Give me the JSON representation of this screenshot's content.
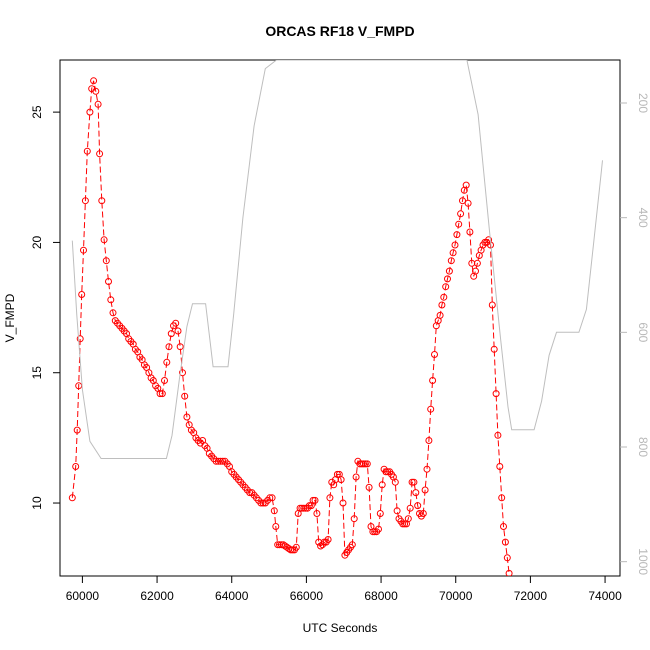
{
  "chart_data": {
    "type": "scatter",
    "title": "ORCAS RF18 V_FMPD",
    "xlabel": "UTC Seconds",
    "ylabel": "V_FMPD",
    "xlim": [
      59400,
      74400
    ],
    "ylim": [
      7.2,
      27.0
    ],
    "x_ticks": [
      {
        "value": 60000,
        "label": "60000"
      },
      {
        "value": 62000,
        "label": "62000"
      },
      {
        "value": 64000,
        "label": "64000"
      },
      {
        "value": 66000,
        "label": "66000"
      },
      {
        "value": 68000,
        "label": "68000"
      },
      {
        "value": 70000,
        "label": "70000"
      },
      {
        "value": 72000,
        "label": "72000"
      },
      {
        "value": 74000,
        "label": "74000"
      }
    ],
    "y_ticks": [
      {
        "value": 10,
        "label": "10"
      },
      {
        "value": 15,
        "label": "15"
      },
      {
        "value": 20,
        "label": "20"
      },
      {
        "value": 25,
        "label": "25"
      }
    ],
    "y2_lim": [
      1025,
      125
    ],
    "y2_ticks": [
      {
        "value": 200,
        "label": "200"
      },
      {
        "value": 400,
        "label": "400"
      },
      {
        "value": 600,
        "label": "600"
      },
      {
        "value": 800,
        "label": "800"
      },
      {
        "value": 1000,
        "label": "1000"
      }
    ],
    "series": [
      {
        "role": "primary",
        "color": "#ff0000",
        "marker": "open-circle",
        "points": [
          [
            59730,
            10.2
          ],
          [
            59820,
            11.4
          ],
          [
            59860,
            12.8
          ],
          [
            59900,
            14.5
          ],
          [
            59940,
            16.3
          ],
          [
            59980,
            18.0
          ],
          [
            60030,
            19.7
          ],
          [
            60080,
            21.6
          ],
          [
            60130,
            23.5
          ],
          [
            60200,
            25.0
          ],
          [
            60250,
            25.9
          ],
          [
            60300,
            26.2
          ],
          [
            60360,
            25.8
          ],
          [
            60420,
            25.3
          ],
          [
            60460,
            23.4
          ],
          [
            60520,
            21.6
          ],
          [
            60580,
            20.1
          ],
          [
            60640,
            19.3
          ],
          [
            60700,
            18.5
          ],
          [
            60760,
            17.8
          ],
          [
            60820,
            17.3
          ],
          [
            60880,
            17.0
          ],
          [
            60940,
            16.9
          ],
          [
            61000,
            16.8
          ],
          [
            61060,
            16.7
          ],
          [
            61120,
            16.6
          ],
          [
            61180,
            16.5
          ],
          [
            61240,
            16.3
          ],
          [
            61300,
            16.2
          ],
          [
            61360,
            16.1
          ],
          [
            61420,
            15.9
          ],
          [
            61480,
            15.8
          ],
          [
            61540,
            15.6
          ],
          [
            61600,
            15.5
          ],
          [
            61660,
            15.3
          ],
          [
            61720,
            15.2
          ],
          [
            61780,
            15.0
          ],
          [
            61840,
            14.8
          ],
          [
            61900,
            14.7
          ],
          [
            61960,
            14.5
          ],
          [
            62020,
            14.4
          ],
          [
            62080,
            14.2
          ],
          [
            62140,
            14.2
          ],
          [
            62200,
            14.7
          ],
          [
            62260,
            15.4
          ],
          [
            62320,
            16.0
          ],
          [
            62380,
            16.5
          ],
          [
            62440,
            16.8
          ],
          [
            62500,
            16.9
          ],
          [
            62560,
            16.6
          ],
          [
            62620,
            16.0
          ],
          [
            62680,
            15.0
          ],
          [
            62740,
            14.1
          ],
          [
            62800,
            13.3
          ],
          [
            62860,
            13.0
          ],
          [
            62920,
            12.8
          ],
          [
            62980,
            12.7
          ],
          [
            63040,
            12.5
          ],
          [
            63100,
            12.4
          ],
          [
            63160,
            12.3
          ],
          [
            63220,
            12.4
          ],
          [
            63280,
            12.2
          ],
          [
            63340,
            12.1
          ],
          [
            63400,
            11.9
          ],
          [
            63460,
            11.8
          ],
          [
            63520,
            11.7
          ],
          [
            63580,
            11.6
          ],
          [
            63640,
            11.6
          ],
          [
            63700,
            11.6
          ],
          [
            63760,
            11.6
          ],
          [
            63820,
            11.6
          ],
          [
            63880,
            11.5
          ],
          [
            63940,
            11.4
          ],
          [
            64000,
            11.2
          ],
          [
            64060,
            11.1
          ],
          [
            64120,
            11.0
          ],
          [
            64180,
            10.9
          ],
          [
            64240,
            10.8
          ],
          [
            64300,
            10.7
          ],
          [
            64360,
            10.6
          ],
          [
            64420,
            10.5
          ],
          [
            64480,
            10.4
          ],
          [
            64540,
            10.4
          ],
          [
            64600,
            10.3
          ],
          [
            64660,
            10.2
          ],
          [
            64720,
            10.1
          ],
          [
            64780,
            10.0
          ],
          [
            64840,
            10.0
          ],
          [
            64900,
            10.0
          ],
          [
            64960,
            10.1
          ],
          [
            65020,
            10.2
          ],
          [
            65080,
            10.2
          ],
          [
            65140,
            9.7
          ],
          [
            65180,
            9.1
          ],
          [
            65230,
            8.4
          ],
          [
            65280,
            8.4
          ],
          [
            65330,
            8.4
          ],
          [
            65380,
            8.4
          ],
          [
            65430,
            8.35
          ],
          [
            65480,
            8.3
          ],
          [
            65530,
            8.25
          ],
          [
            65580,
            8.2
          ],
          [
            65630,
            8.2
          ],
          [
            65680,
            8.2
          ],
          [
            65730,
            8.3
          ],
          [
            65780,
            9.6
          ],
          [
            65830,
            9.8
          ],
          [
            65880,
            9.8
          ],
          [
            65930,
            9.8
          ],
          [
            65980,
            9.8
          ],
          [
            66030,
            9.8
          ],
          [
            66080,
            9.9
          ],
          [
            66130,
            9.9
          ],
          [
            66180,
            10.1
          ],
          [
            66230,
            10.1
          ],
          [
            66280,
            9.6
          ],
          [
            66330,
            8.5
          ],
          [
            66380,
            8.35
          ],
          [
            66430,
            8.4
          ],
          [
            66480,
            8.5
          ],
          [
            66530,
            8.5
          ],
          [
            66580,
            8.6
          ],
          [
            66630,
            10.2
          ],
          [
            66680,
            10.8
          ],
          [
            66730,
            10.7
          ],
          [
            66780,
            10.9
          ],
          [
            66830,
            11.1
          ],
          [
            66880,
            11.1
          ],
          [
            66930,
            10.9
          ],
          [
            66980,
            10.0
          ],
          [
            67030,
            8.0
          ],
          [
            67080,
            8.1
          ],
          [
            67130,
            8.2
          ],
          [
            67180,
            8.3
          ],
          [
            67230,
            8.4
          ],
          [
            67280,
            9.4
          ],
          [
            67330,
            11.0
          ],
          [
            67380,
            11.6
          ],
          [
            67430,
            11.5
          ],
          [
            67480,
            11.5
          ],
          [
            67530,
            11.5
          ],
          [
            67580,
            11.5
          ],
          [
            67630,
            11.5
          ],
          [
            67680,
            10.6
          ],
          [
            67730,
            9.1
          ],
          [
            67780,
            8.9
          ],
          [
            67830,
            8.9
          ],
          [
            67880,
            8.9
          ],
          [
            67930,
            9.0
          ],
          [
            67980,
            9.6
          ],
          [
            68030,
            10.7
          ],
          [
            68080,
            11.3
          ],
          [
            68130,
            11.2
          ],
          [
            68180,
            11.2
          ],
          [
            68230,
            11.2
          ],
          [
            68280,
            11.1
          ],
          [
            68330,
            11.0
          ],
          [
            68380,
            10.8
          ],
          [
            68430,
            9.7
          ],
          [
            68480,
            9.4
          ],
          [
            68530,
            9.3
          ],
          [
            68580,
            9.2
          ],
          [
            68630,
            9.2
          ],
          [
            68680,
            9.2
          ],
          [
            68730,
            9.4
          ],
          [
            68780,
            9.8
          ],
          [
            68830,
            10.8
          ],
          [
            68880,
            10.8
          ],
          [
            68930,
            10.4
          ],
          [
            68980,
            9.9
          ],
          [
            69030,
            9.6
          ],
          [
            69080,
            9.5
          ],
          [
            69130,
            9.6
          ],
          [
            69180,
            10.5
          ],
          [
            69230,
            11.3
          ],
          [
            69280,
            12.4
          ],
          [
            69330,
            13.6
          ],
          [
            69380,
            14.7
          ],
          [
            69430,
            15.7
          ],
          [
            69480,
            16.8
          ],
          [
            69530,
            17.0
          ],
          [
            69580,
            17.2
          ],
          [
            69630,
            17.6
          ],
          [
            69680,
            17.9
          ],
          [
            69730,
            18.3
          ],
          [
            69780,
            18.6
          ],
          [
            69830,
            18.9
          ],
          [
            69880,
            19.3
          ],
          [
            69930,
            19.6
          ],
          [
            69980,
            19.9
          ],
          [
            70030,
            20.3
          ],
          [
            70080,
            20.7
          ],
          [
            70130,
            21.1
          ],
          [
            70180,
            21.6
          ],
          [
            70230,
            22.0
          ],
          [
            70280,
            22.2
          ],
          [
            70330,
            21.5
          ],
          [
            70380,
            20.4
          ],
          [
            70430,
            19.2
          ],
          [
            70480,
            18.7
          ],
          [
            70530,
            18.9
          ],
          [
            70580,
            19.2
          ],
          [
            70630,
            19.5
          ],
          [
            70680,
            19.7
          ],
          [
            70730,
            19.9
          ],
          [
            70780,
            20.0
          ],
          [
            70830,
            20.0
          ],
          [
            70880,
            20.1
          ],
          [
            70930,
            19.9
          ],
          [
            70980,
            17.6
          ],
          [
            71030,
            15.9
          ],
          [
            71080,
            14.2
          ],
          [
            71130,
            12.6
          ],
          [
            71180,
            11.4
          ],
          [
            71230,
            10.2
          ],
          [
            71280,
            9.1
          ],
          [
            71330,
            8.5
          ],
          [
            71380,
            7.9
          ],
          [
            71430,
            7.3
          ]
        ]
      },
      {
        "role": "secondary",
        "color": "#bebebe",
        "marker": "line",
        "axis": "right",
        "points": [
          [
            59730,
            440
          ],
          [
            59850,
            570
          ],
          [
            60000,
            700
          ],
          [
            60200,
            790
          ],
          [
            60500,
            820
          ],
          [
            61000,
            820
          ],
          [
            61500,
            820
          ],
          [
            62000,
            820
          ],
          [
            62250,
            820
          ],
          [
            62400,
            780
          ],
          [
            62600,
            680
          ],
          [
            62800,
            590
          ],
          [
            62950,
            550
          ],
          [
            63100,
            550
          ],
          [
            63300,
            550
          ],
          [
            63500,
            660
          ],
          [
            63700,
            660
          ],
          [
            63900,
            660
          ],
          [
            64050,
            570
          ],
          [
            64300,
            400
          ],
          [
            64600,
            240
          ],
          [
            64900,
            140
          ],
          [
            65200,
            125
          ],
          [
            65500,
            125
          ],
          [
            66000,
            125
          ],
          [
            66500,
            125
          ],
          [
            66700,
            125
          ],
          [
            66900,
            125
          ],
          [
            67000,
            125
          ],
          [
            67200,
            125
          ],
          [
            67500,
            125
          ],
          [
            67800,
            125
          ],
          [
            68000,
            125
          ],
          [
            68300,
            125
          ],
          [
            68600,
            125
          ],
          [
            68900,
            125
          ],
          [
            69100,
            125
          ],
          [
            69500,
            125
          ],
          [
            70000,
            125
          ],
          [
            70300,
            125
          ],
          [
            70600,
            220
          ],
          [
            70900,
            420
          ],
          [
            71200,
            610
          ],
          [
            71400,
            730
          ],
          [
            71500,
            770
          ],
          [
            71700,
            770
          ],
          [
            71900,
            770
          ],
          [
            72100,
            770
          ],
          [
            72300,
            720
          ],
          [
            72500,
            640
          ],
          [
            72700,
            600
          ],
          [
            72900,
            600
          ],
          [
            73100,
            600
          ],
          [
            73300,
            600
          ],
          [
            73500,
            560
          ],
          [
            73700,
            440
          ],
          [
            73900,
            320
          ],
          [
            73930,
            300
          ]
        ]
      }
    ]
  }
}
